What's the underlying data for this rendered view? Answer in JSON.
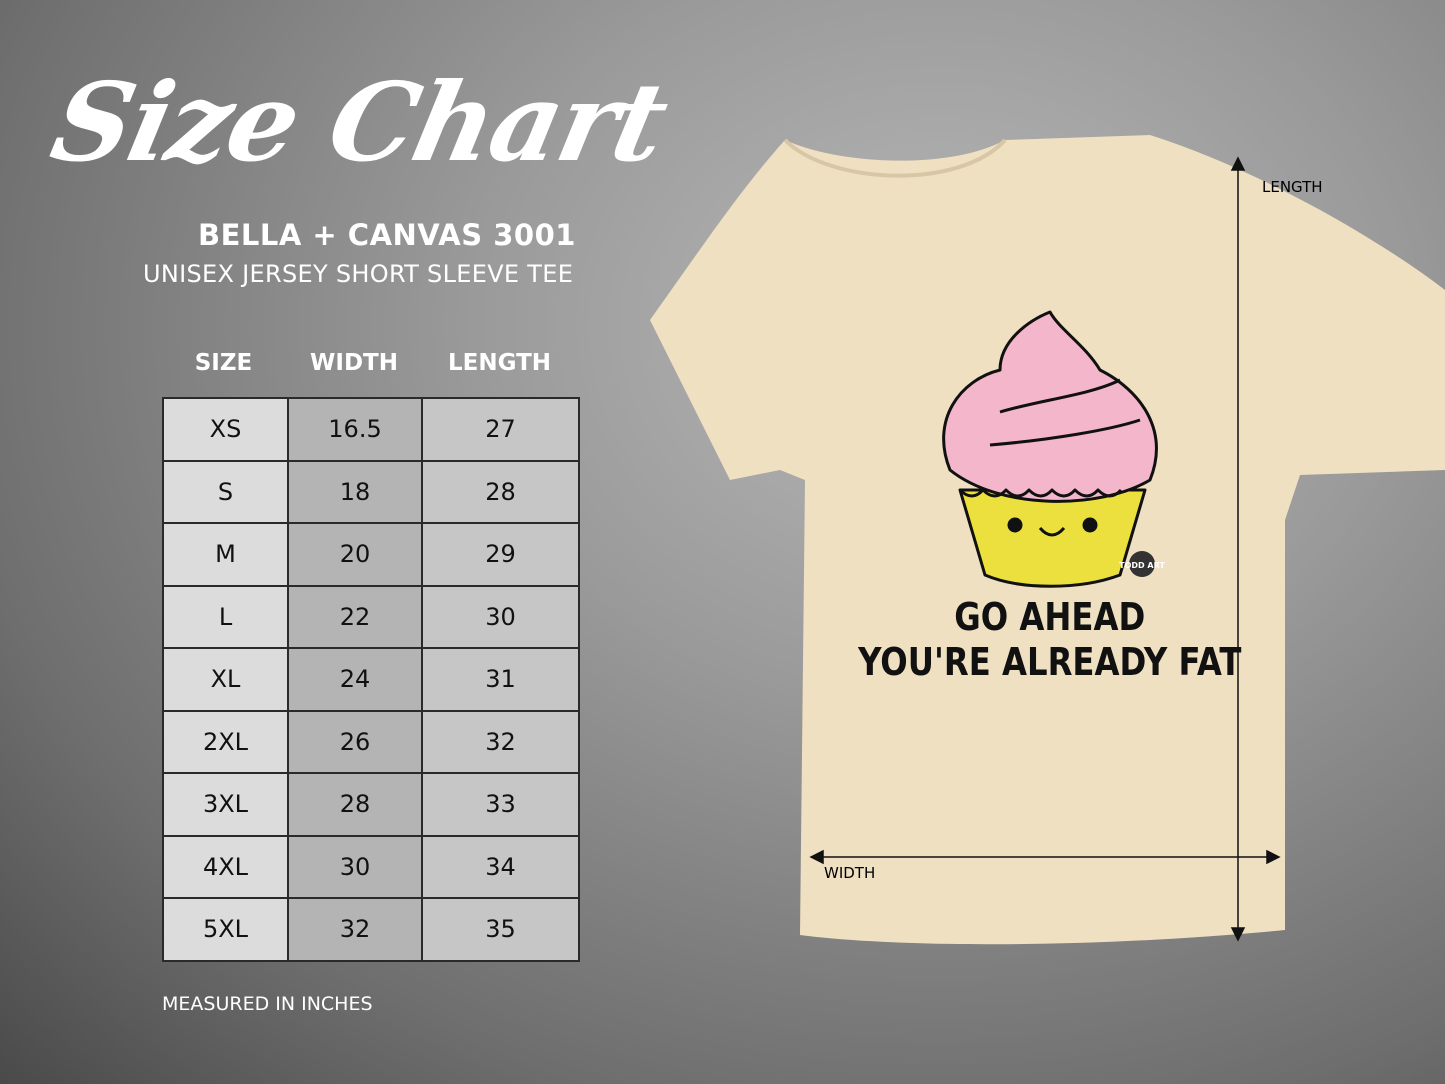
{
  "header": {
    "title": "Size Chart",
    "brand": "BELLA + CANVAS 3001",
    "subtitle": "UNISEX JERSEY SHORT SLEEVE TEE"
  },
  "table": {
    "columns": [
      "SIZE",
      "WIDTH",
      "LENGTH"
    ],
    "rows": [
      [
        "XS",
        "16.5",
        "27"
      ],
      [
        "S",
        "18",
        "28"
      ],
      [
        "M",
        "20",
        "29"
      ],
      [
        "L",
        "22",
        "30"
      ],
      [
        "XL",
        "24",
        "31"
      ],
      [
        "2XL",
        "26",
        "32"
      ],
      [
        "3XL",
        "28",
        "33"
      ],
      [
        "4XL",
        "30",
        "34"
      ],
      [
        "5XL",
        "32",
        "35"
      ]
    ]
  },
  "note": "MEASURED IN INCHES",
  "shirt": {
    "color": "#efe0c2",
    "print_line1": "GO AHEAD",
    "print_line2": "YOU'RE ALREADY FAT",
    "logo": "TODD ART",
    "length_label": "LENGTH",
    "width_label": "WIDTH"
  }
}
